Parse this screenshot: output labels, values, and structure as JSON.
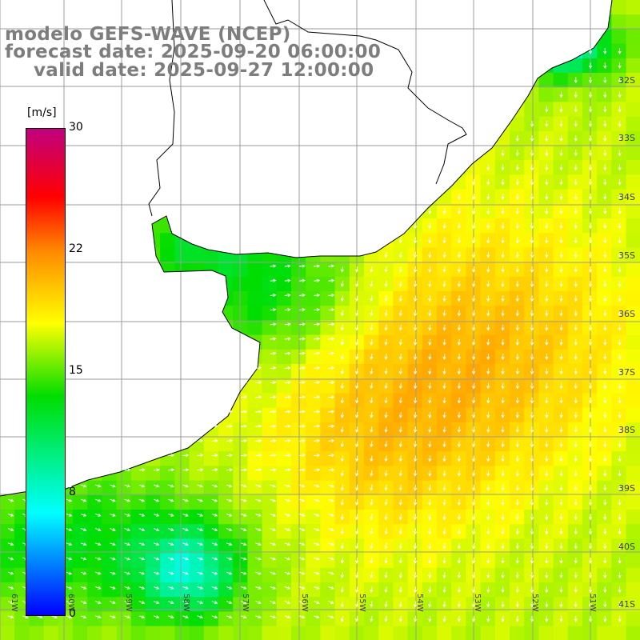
{
  "header": {
    "model": "modelo GEFS-WAVE (NCEP)",
    "forecast": "forecast date: 2025-09-20 06:00:00",
    "valid": "valid date: 2025-09-27 12:00:00"
  },
  "colorbar": {
    "unit": "[m/s]",
    "ticks": [
      "30",
      "22",
      "15",
      "8",
      "0"
    ],
    "colors": [
      "#0000ff",
      "#00ffff",
      "#00dd00",
      "#ffff00",
      "#ff8800",
      "#ff0000",
      "#c0007f"
    ]
  },
  "latitude_labels": [
    "32S",
    "33S",
    "34S",
    "35S",
    "36S",
    "37S",
    "38S",
    "39S",
    "40S",
    "41S"
  ],
  "longitude_labels": [
    "61W",
    "60W",
    "59W",
    "58W",
    "57W",
    "56W",
    "55W",
    "54W",
    "53W",
    "52W",
    "51W"
  ],
  "colors": {
    "land": "#ffffff",
    "grid": "#9b9b9b",
    "coast": "#000000",
    "vectors": "#ffffff",
    "header": "#7d7d7d"
  }
}
